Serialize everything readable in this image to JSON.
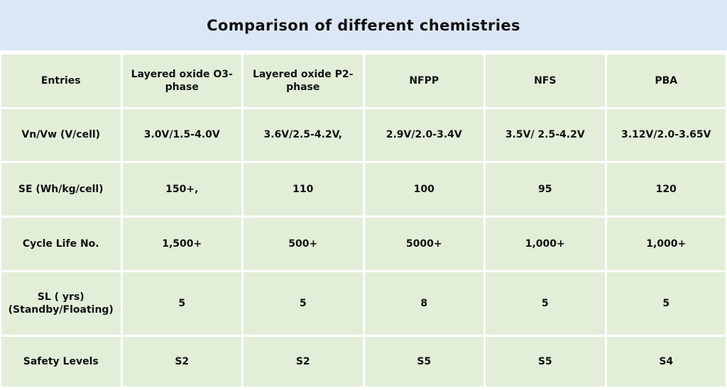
{
  "title": "Comparison of different chemistries",
  "colors": {
    "title_bg": "#dbe7f4",
    "cell_bg": "#e3eed9",
    "gap": "#ffffff",
    "text": "#111111"
  },
  "table": {
    "columns": [
      "Entries",
      "Layered oxide O3-phase",
      "Layered oxide P2-phase",
      "NFPP",
      "NFS",
      "PBA"
    ],
    "rows": [
      {
        "label": "Vn/Vw (V/cell)",
        "values": [
          "3.0V/1.5-4.0V",
          "3.6V/2.5-4.2V,",
          "2.9V/2.0-3.4V",
          "3.5V/ 2.5-4.2V",
          "3.12V/2.0-3.65V"
        ]
      },
      {
        "label": "SE (Wh/kg/cell)",
        "values": [
          "150+,",
          "110",
          "100",
          "95",
          "120"
        ]
      },
      {
        "label": "Cycle Life No.",
        "values": [
          "1,500+",
          "500+",
          "5000+",
          "1,000+",
          "1,000+"
        ]
      },
      {
        "label": "SL ( yrs)\n(Standby/Floating)",
        "values": [
          "5",
          "5",
          "8",
          "5",
          "5"
        ]
      },
      {
        "label": "Safety Levels",
        "values": [
          "S2",
          "S2",
          "S5",
          "S5",
          "S4"
        ]
      }
    ]
  }
}
